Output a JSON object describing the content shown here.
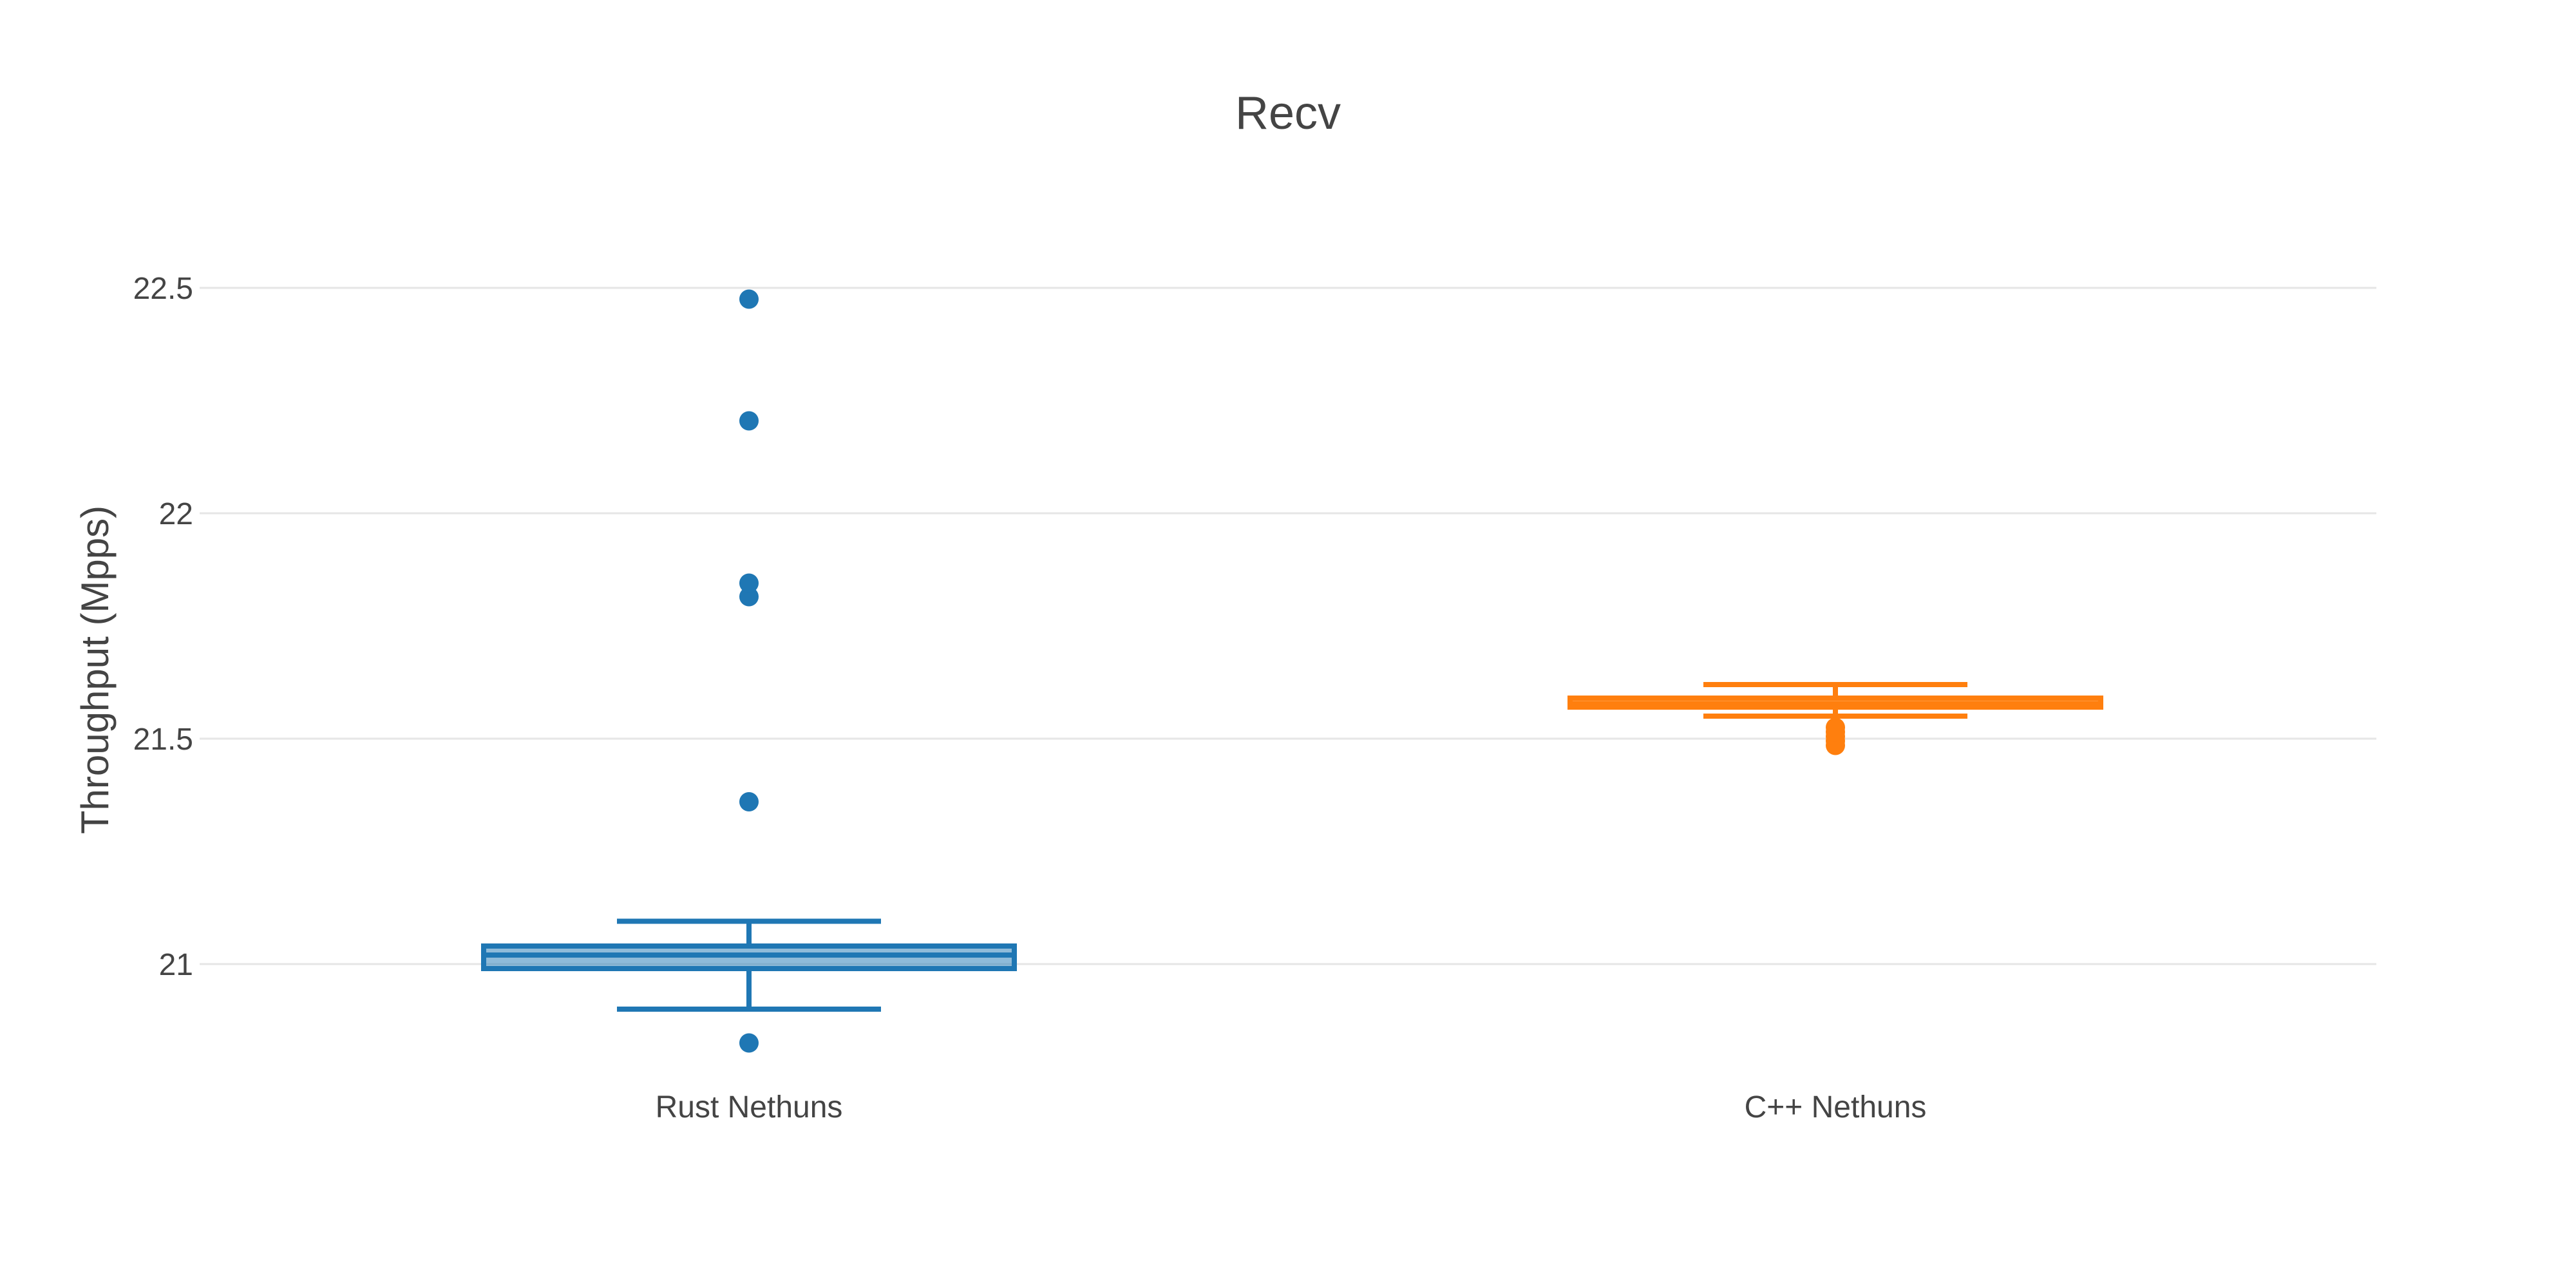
{
  "chart_data": {
    "type": "box",
    "title": "Recv",
    "xlabel": "",
    "ylabel": "Throughput (Mpps)",
    "ylim": [
      20.75,
      22.6
    ],
    "y_ticks": [
      21,
      21.5,
      22,
      22.5
    ],
    "y_tick_labels": [
      "21",
      "21.5",
      "22",
      "22.5"
    ],
    "grid": true,
    "legend": "none",
    "categories": [
      "Rust Nethuns",
      "C++ Nethuns"
    ],
    "series": [
      {
        "category": "Rust Nethuns",
        "color": "#1f77b4",
        "whisker_low": 20.9,
        "q1": 20.99,
        "median": 21.02,
        "q3": 21.04,
        "whisker_high": 21.095,
        "outliers": [
          20.825,
          21.36,
          21.815,
          21.845,
          22.205,
          22.475
        ]
      },
      {
        "category": "C++ Nethuns",
        "color": "#ff7f0e",
        "whisker_low": 21.55,
        "q1": 21.57,
        "median": 21.578,
        "q3": 21.59,
        "whisker_high": 21.62,
        "outliers": [
          21.485,
          21.495,
          21.505,
          21.515,
          21.525
        ]
      }
    ]
  }
}
